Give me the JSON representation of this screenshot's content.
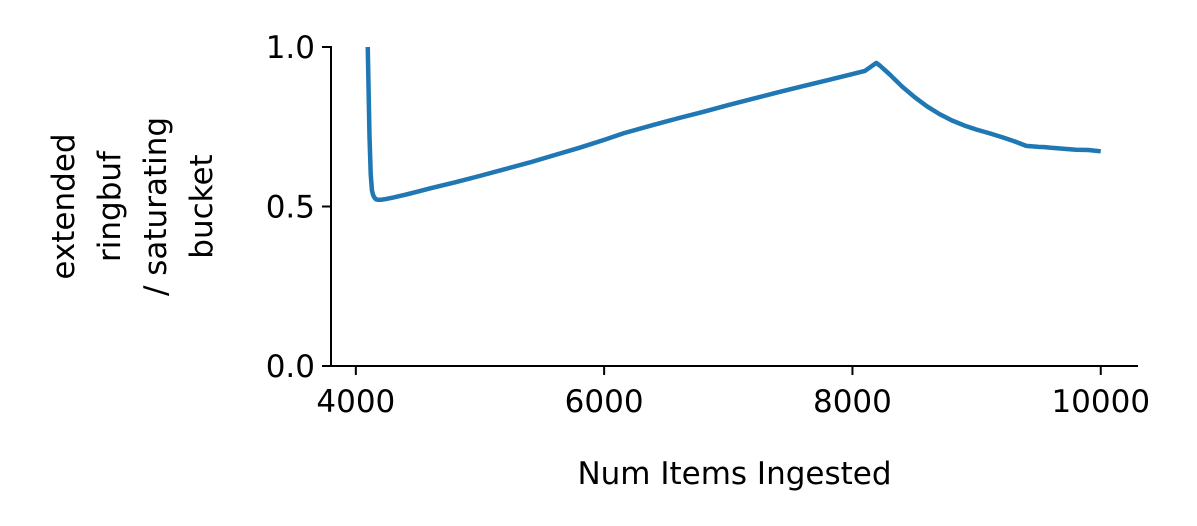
{
  "chart_data": {
    "type": "line",
    "title": "",
    "xlabel": "Num Items Ingested",
    "ylabel_lines": [
      "extended",
      "ringbuf",
      "/ saturating",
      "bucket"
    ],
    "xlim": [
      3800,
      10300
    ],
    "ylim": [
      0.0,
      1.0
    ],
    "x_ticks": [
      4000,
      6000,
      8000,
      10000
    ],
    "x_tick_labels": [
      "4000",
      "6000",
      "8000",
      "10000"
    ],
    "y_ticks": [
      0.0,
      0.5,
      1.0
    ],
    "y_tick_labels": [
      "0.0",
      "0.5",
      "1.0"
    ],
    "grid": false,
    "legend": "none",
    "series": [
      {
        "color": "#1f77b4",
        "x": [
          4096,
          4100,
          4110,
          4120,
          4130,
          4140,
          4150,
          4160,
          4180,
          4200,
          4250,
          4300,
          4400,
          4500,
          4600,
          4800,
          5000,
          5200,
          5400,
          5600,
          5800,
          6000,
          6160,
          6400,
          6600,
          6800,
          7000,
          7200,
          7400,
          7600,
          7800,
          8000,
          8100,
          8192,
          8220,
          8300,
          8400,
          8500,
          8600,
          8700,
          8800,
          8900,
          9000,
          9100,
          9216,
          9300,
          9400,
          9500,
          9550,
          9600,
          9700,
          9800,
          9900,
          10000
        ],
        "y": [
          1.0,
          0.92,
          0.72,
          0.6,
          0.55,
          0.535,
          0.528,
          0.523,
          0.521,
          0.521,
          0.524,
          0.528,
          0.537,
          0.547,
          0.557,
          0.576,
          0.596,
          0.617,
          0.638,
          0.661,
          0.684,
          0.709,
          0.73,
          0.756,
          0.777,
          0.797,
          0.818,
          0.838,
          0.858,
          0.877,
          0.896,
          0.915,
          0.925,
          0.95,
          0.942,
          0.914,
          0.876,
          0.843,
          0.814,
          0.79,
          0.77,
          0.754,
          0.741,
          0.73,
          0.716,
          0.705,
          0.69,
          0.687,
          0.686,
          0.684,
          0.681,
          0.678,
          0.677,
          0.673
        ]
      }
    ]
  }
}
